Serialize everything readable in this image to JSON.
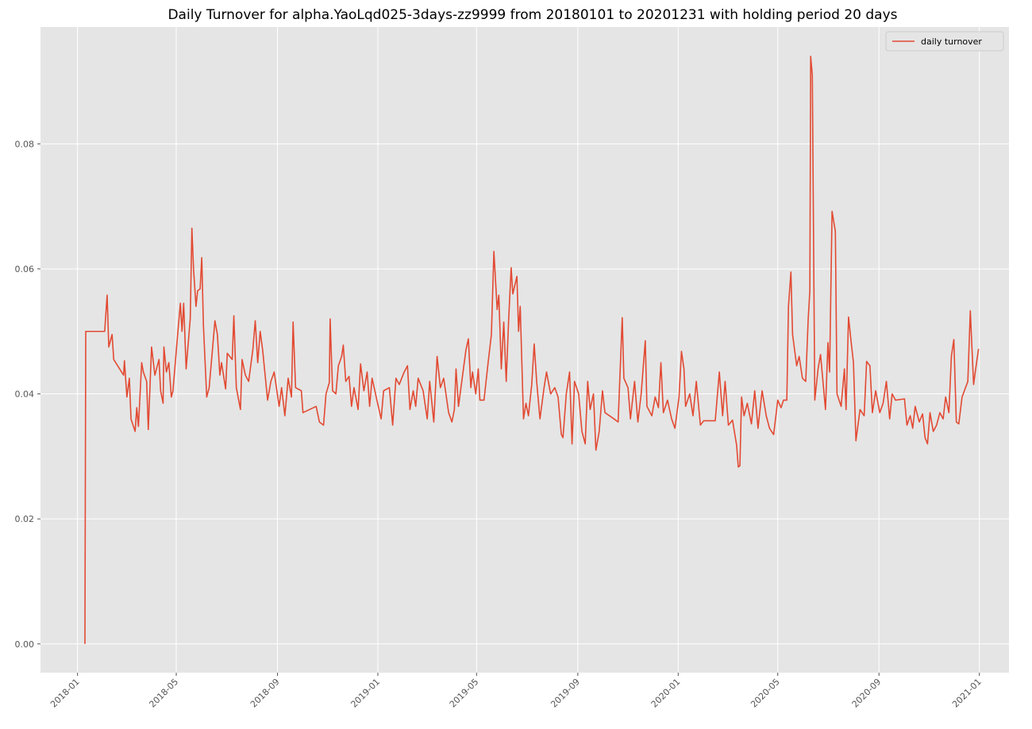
{
  "chart_data": {
    "type": "line",
    "title": "Daily Turnover for alpha.YaoLqd025-3days-zz9999 from 20180101 to 20201231 with holding period 20 days",
    "xlim": [
      "2017-11-17",
      "2021-02-06"
    ],
    "ylim": [
      -0.0046,
      0.0987
    ],
    "xticks": [
      {
        "value": "2018-01-01",
        "label": "2018-01"
      },
      {
        "value": "2018-05-01",
        "label": "2018-05"
      },
      {
        "value": "2018-09-01",
        "label": "2018-09"
      },
      {
        "value": "2019-01-01",
        "label": "2019-01"
      },
      {
        "value": "2019-05-01",
        "label": "2019-05"
      },
      {
        "value": "2019-09-01",
        "label": "2019-09"
      },
      {
        "value": "2020-01-01",
        "label": "2020-01"
      },
      {
        "value": "2020-05-01",
        "label": "2020-05"
      },
      {
        "value": "2020-09-01",
        "label": "2020-09"
      },
      {
        "value": "2021-01-01",
        "label": "2021-01"
      }
    ],
    "yticks": [
      {
        "value": 0,
        "label": "0.00"
      },
      0.02,
      0.04,
      0.06,
      0.08
    ],
    "grid": true,
    "legend": "upper right",
    "x": [
      "2018-01-10",
      "2018-01-11",
      "2018-02-03",
      "2018-02-06",
      "2018-02-08",
      "2018-02-12",
      "2018-02-14",
      "2018-02-26",
      "2018-02-27",
      "2018-03-02",
      "2018-03-05",
      "2018-03-07",
      "2018-03-12",
      "2018-03-14",
      "2018-03-16",
      "2018-03-20",
      "2018-03-22",
      "2018-03-26",
      "2018-03-28",
      "2018-04-01",
      "2018-04-05",
      "2018-04-10",
      "2018-04-12",
      "2018-04-15",
      "2018-04-16",
      "2018-04-19",
      "2018-04-22",
      "2018-04-25",
      "2018-04-27",
      "2018-05-03",
      "2018-05-06",
      "2018-05-08",
      "2018-05-10",
      "2018-05-13",
      "2018-05-18",
      "2018-05-20",
      "2018-05-22",
      "2018-05-25",
      "2018-05-27",
      "2018-05-30",
      "2018-06-01",
      "2018-06-03",
      "2018-06-07",
      "2018-06-10",
      "2018-06-17",
      "2018-06-20",
      "2018-06-23",
      "2018-06-25",
      "2018-06-30",
      "2018-07-02",
      "2018-07-08",
      "2018-07-10",
      "2018-07-13",
      "2018-07-18",
      "2018-07-20",
      "2018-07-24",
      "2018-07-28",
      "2018-08-02",
      "2018-08-05",
      "2018-08-08",
      "2018-08-11",
      "2018-08-14",
      "2018-08-20",
      "2018-08-24",
      "2018-08-28",
      "2018-09-03",
      "2018-09-06",
      "2018-09-10",
      "2018-09-14",
      "2018-09-18",
      "2018-09-20",
      "2018-09-23",
      "2018-09-30",
      "2018-10-02",
      "2018-10-18",
      "2018-10-22",
      "2018-10-27",
      "2018-10-30",
      "2018-11-03",
      "2018-11-04",
      "2018-11-07",
      "2018-11-11",
      "2018-11-14",
      "2018-11-18",
      "2018-11-20",
      "2018-11-23",
      "2018-11-27",
      "2018-11-30",
      "2018-12-03",
      "2018-12-08",
      "2018-12-11",
      "2018-12-15",
      "2018-12-19",
      "2018-12-22",
      "2018-12-25",
      "2018-12-30",
      "2019-01-05",
      "2019-01-08",
      "2019-01-15",
      "2019-01-19",
      "2019-01-23",
      "2019-01-27",
      "2019-02-02",
      "2019-02-06",
      "2019-02-09",
      "2019-02-13",
      "2019-02-16",
      "2019-02-19",
      "2019-02-25",
      "2019-03-02",
      "2019-03-05",
      "2019-03-10",
      "2019-03-14",
      "2019-03-18",
      "2019-03-22",
      "2019-03-28",
      "2019-04-01",
      "2019-04-04",
      "2019-04-06",
      "2019-04-09",
      "2019-04-13",
      "2019-04-18",
      "2019-04-21",
      "2019-04-24",
      "2019-04-26",
      "2019-04-30",
      "2019-05-03",
      "2019-05-05",
      "2019-05-10",
      "2019-05-15",
      "2019-05-19",
      "2019-05-22",
      "2019-05-26",
      "2019-05-28",
      "2019-05-31",
      "2019-06-03",
      "2019-06-06",
      "2019-06-09",
      "2019-06-12",
      "2019-06-14",
      "2019-06-19",
      "2019-06-21",
      "2019-06-23",
      "2019-06-27",
      "2019-06-30",
      "2019-07-03",
      "2019-07-07",
      "2019-07-10",
      "2019-07-13",
      "2019-07-17",
      "2019-07-22",
      "2019-07-25",
      "2019-07-30",
      "2019-08-04",
      "2019-08-08",
      "2019-08-12",
      "2019-08-14",
      "2019-08-18",
      "2019-08-22",
      "2019-08-25",
      "2019-08-28",
      "2019-09-02",
      "2019-09-06",
      "2019-09-10",
      "2019-09-13",
      "2019-09-16",
      "2019-09-20",
      "2019-09-23",
      "2019-09-27",
      "2019-10-01",
      "2019-10-04",
      "2019-10-15",
      "2019-10-20",
      "2019-10-25",
      "2019-10-27",
      "2019-11-01",
      "2019-11-04",
      "2019-11-09",
      "2019-11-13",
      "2019-11-17",
      "2019-11-22",
      "2019-11-24",
      "2019-11-30",
      "2019-12-04",
      "2019-12-08",
      "2019-12-11",
      "2019-12-14",
      "2019-12-19",
      "2019-12-24",
      "2019-12-28",
      "2020-01-02",
      "2020-01-05",
      "2020-01-08",
      "2020-01-10",
      "2020-01-15",
      "2020-01-19",
      "2020-01-23",
      "2020-01-28",
      "2020-02-01",
      "2020-02-15",
      "2020-02-20",
      "2020-02-24",
      "2020-02-27",
      "2020-03-02",
      "2020-03-07",
      "2020-03-12",
      "2020-03-14",
      "2020-03-16",
      "2020-03-18",
      "2020-03-21",
      "2020-03-25",
      "2020-03-30",
      "2020-04-03",
      "2020-04-07",
      "2020-04-12",
      "2020-04-17",
      "2020-04-21",
      "2020-04-26",
      "2020-05-01",
      "2020-05-05",
      "2020-05-08",
      "2020-05-12",
      "2020-05-14",
      "2020-05-17",
      "2020-05-19",
      "2020-05-24",
      "2020-05-27",
      "2020-05-31",
      "2020-06-04",
      "2020-06-07",
      "2020-06-09",
      "2020-06-10",
      "2020-06-12",
      "2020-06-15",
      "2020-06-19",
      "2020-06-22",
      "2020-06-28",
      "2020-07-01",
      "2020-07-03",
      "2020-07-06",
      "2020-07-10",
      "2020-07-12",
      "2020-07-17",
      "2020-07-21",
      "2020-07-23",
      "2020-07-26",
      "2020-07-29",
      "2020-08-01",
      "2020-08-04",
      "2020-08-09",
      "2020-08-14",
      "2020-08-17",
      "2020-08-21",
      "2020-08-24",
      "2020-08-28",
      "2020-09-02",
      "2020-09-06",
      "2020-09-10",
      "2020-09-14",
      "2020-09-17",
      "2020-09-21",
      "2020-10-02",
      "2020-10-05",
      "2020-10-09",
      "2020-10-12",
      "2020-10-15",
      "2020-10-20",
      "2020-10-24",
      "2020-10-27",
      "2020-10-30",
      "2020-11-02",
      "2020-11-06",
      "2020-11-10",
      "2020-11-14",
      "2020-11-18",
      "2020-11-21",
      "2020-11-25",
      "2020-11-28",
      "2020-12-01",
      "2020-12-04",
      "2020-12-07",
      "2020-12-11",
      "2020-12-18",
      "2020-12-21",
      "2020-12-25",
      "2020-12-27",
      "2020-12-31"
    ],
    "series": [
      {
        "name": "daily turnover",
        "color": "#E24A33",
        "values": [
          0,
          0.05,
          0.05,
          0.0558,
          0.0475,
          0.0495,
          0.0455,
          0.043,
          0.0453,
          0.0395,
          0.0425,
          0.036,
          0.034,
          0.0378,
          0.0348,
          0.045,
          0.0435,
          0.042,
          0.0343,
          0.0475,
          0.043,
          0.0455,
          0.0405,
          0.0385,
          0.0475,
          0.0435,
          0.045,
          0.0395,
          0.0405,
          0.05,
          0.0545,
          0.05,
          0.0545,
          0.044,
          0.052,
          0.0665,
          0.06,
          0.054,
          0.0565,
          0.0568,
          0.0618,
          0.051,
          0.0395,
          0.041,
          0.0517,
          0.0495,
          0.043,
          0.045,
          0.0408,
          0.0465,
          0.0455,
          0.0525,
          0.041,
          0.0375,
          0.0455,
          0.043,
          0.042,
          0.047,
          0.0517,
          0.045,
          0.05,
          0.047,
          0.039,
          0.042,
          0.0435,
          0.038,
          0.041,
          0.0365,
          0.0425,
          0.0395,
          0.0515,
          0.041,
          0.0405,
          0.037,
          0.038,
          0.0355,
          0.035,
          0.04,
          0.0418,
          0.052,
          0.0405,
          0.04,
          0.0445,
          0.046,
          0.0478,
          0.042,
          0.0428,
          0.038,
          0.041,
          0.0375,
          0.0448,
          0.0405,
          0.0435,
          0.038,
          0.0425,
          0.0395,
          0.036,
          0.0405,
          0.041,
          0.035,
          0.0425,
          0.0415,
          0.0435,
          0.0445,
          0.0375,
          0.0405,
          0.038,
          0.0425,
          0.0405,
          0.036,
          0.042,
          0.0355,
          0.046,
          0.041,
          0.0425,
          0.037,
          0.0355,
          0.0375,
          0.044,
          0.038,
          0.042,
          0.047,
          0.0488,
          0.041,
          0.0435,
          0.04,
          0.044,
          0.039,
          0.039,
          0.045,
          0.0495,
          0.0628,
          0.0535,
          0.0558,
          0.044,
          0.0515,
          0.042,
          0.052,
          0.0602,
          0.056,
          0.0588,
          0.05,
          0.054,
          0.036,
          0.0385,
          0.0365,
          0.0415,
          0.048,
          0.042,
          0.036,
          0.041,
          0.0435,
          0.04,
          0.041,
          0.0395,
          0.0335,
          0.033,
          0.04,
          0.0435,
          0.032,
          0.042,
          0.04,
          0.034,
          0.032,
          0.042,
          0.0375,
          0.04,
          0.031,
          0.034,
          0.0405,
          0.037,
          0.036,
          0.0355,
          0.0522,
          0.0425,
          0.041,
          0.036,
          0.042,
          0.0355,
          0.04,
          0.0485,
          0.038,
          0.0365,
          0.0395,
          0.0378,
          0.045,
          0.037,
          0.039,
          0.036,
          0.0345,
          0.0395,
          0.0468,
          0.044,
          0.038,
          0.04,
          0.0365,
          0.042,
          0.035,
          0.0357,
          0.0357,
          0.0435,
          0.0365,
          0.042,
          0.035,
          0.0358,
          0.0318,
          0.0283,
          0.0285,
          0.0395,
          0.0365,
          0.0385,
          0.0352,
          0.0405,
          0.0345,
          0.0405,
          0.0365,
          0.0345,
          0.0335,
          0.039,
          0.0378,
          0.039,
          0.039,
          0.054,
          0.0595,
          0.0495,
          0.0445,
          0.046,
          0.0425,
          0.042,
          0.052,
          0.0565,
          0.094,
          0.091,
          0.039,
          0.044,
          0.0463,
          0.0375,
          0.0482,
          0.0435,
          0.0692,
          0.066,
          0.04,
          0.038,
          0.044,
          0.0375,
          0.0523,
          0.0485,
          0.045,
          0.0325,
          0.0375,
          0.0365,
          0.0452,
          0.0445,
          0.037,
          0.0405,
          0.037,
          0.0385,
          0.042,
          0.036,
          0.04,
          0.039,
          0.0392,
          0.035,
          0.0365,
          0.0345,
          0.038,
          0.0355,
          0.0368,
          0.033,
          0.032,
          0.037,
          0.034,
          0.035,
          0.037,
          0.036,
          0.0395,
          0.037,
          0.046,
          0.0487,
          0.0355,
          0.0352,
          0.0395,
          0.042,
          0.0533,
          0.0415,
          0.0435,
          0.0472
        ]
      }
    ]
  }
}
